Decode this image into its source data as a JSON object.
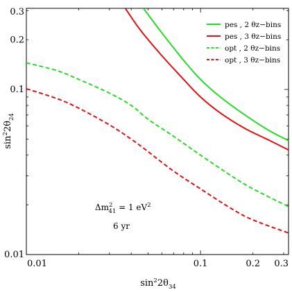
{
  "chart_data": {
    "type": "line",
    "xlabel": "sin²2θ₃₄",
    "ylabel": "sin²2θ₂₄",
    "xscale": "log",
    "yscale": "log",
    "xlim": [
      0.01,
      0.32
    ],
    "ylim": [
      0.01,
      0.31
    ],
    "grid": false,
    "legend_position": "top-right",
    "x_ticks": [
      {
        "value": 0.01,
        "label": "0.01"
      },
      {
        "value": 0.1,
        "label": "0.1"
      },
      {
        "value": 0.2,
        "label": "0.2"
      },
      {
        "value": 0.3,
        "label": "0.3"
      }
    ],
    "y_ticks": [
      {
        "value": 0.01,
        "label": "0.01"
      },
      {
        "value": 0.1,
        "label": "0.1"
      },
      {
        "value": 0.2,
        "label": "0.2"
      },
      {
        "value": 0.3,
        "label": "0.3"
      }
    ],
    "series": [
      {
        "name": "pes , 2 θz−bins",
        "color": "#22dd22",
        "dash": "solid",
        "points": [
          [
            0.047,
            0.31
          ],
          [
            0.06,
            0.22
          ],
          [
            0.08,
            0.15
          ],
          [
            0.1,
            0.115
          ],
          [
            0.13,
            0.09
          ],
          [
            0.18,
            0.07
          ],
          [
            0.25,
            0.056
          ],
          [
            0.32,
            0.049
          ]
        ]
      },
      {
        "name": "pes , 3 θz−bins",
        "color": "#dd1111",
        "dash": "solid",
        "points": [
          [
            0.037,
            0.31
          ],
          [
            0.045,
            0.23
          ],
          [
            0.06,
            0.16
          ],
          [
            0.08,
            0.115
          ],
          [
            0.1,
            0.09
          ],
          [
            0.13,
            0.072
          ],
          [
            0.18,
            0.058
          ],
          [
            0.25,
            0.049
          ],
          [
            0.32,
            0.043
          ]
        ]
      },
      {
        "name": "opt , 2 θz−bins",
        "color": "#22dd22",
        "dash": "dashed",
        "points": [
          [
            0.01,
            0.145
          ],
          [
            0.015,
            0.13
          ],
          [
            0.02,
            0.115
          ],
          [
            0.03,
            0.095
          ],
          [
            0.04,
            0.08
          ],
          [
            0.05,
            0.066
          ],
          [
            0.07,
            0.052
          ],
          [
            0.1,
            0.04
          ],
          [
            0.15,
            0.03
          ],
          [
            0.2,
            0.025
          ],
          [
            0.32,
            0.0195
          ]
        ]
      },
      {
        "name": "opt , 3 θz−bins",
        "color": "#dd1111",
        "dash": "dashed",
        "points": [
          [
            0.01,
            0.101
          ],
          [
            0.015,
            0.088
          ],
          [
            0.02,
            0.077
          ],
          [
            0.03,
            0.061
          ],
          [
            0.04,
            0.05
          ],
          [
            0.05,
            0.042
          ],
          [
            0.07,
            0.032
          ],
          [
            0.1,
            0.025
          ],
          [
            0.15,
            0.019
          ],
          [
            0.2,
            0.0162
          ],
          [
            0.32,
            0.0135
          ]
        ]
      }
    ],
    "annotations": {
      "mass_label": "Δm²₄₁ = 1 eV²",
      "time_label": "6 yr"
    }
  }
}
